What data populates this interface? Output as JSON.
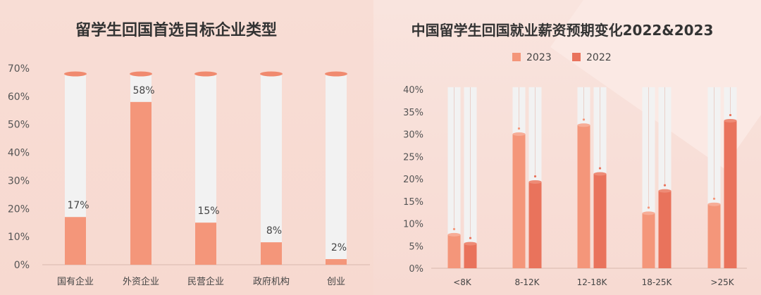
{
  "colors": {
    "bar_2023": "#f4967a",
    "bar_2022": "#e9735c",
    "bar_single": "#f4967a",
    "tube": "#f2f2f2",
    "cap": "#f08a6f",
    "axis_text": "#555555",
    "title": "#333333"
  },
  "chart_data": [
    {
      "type": "bar",
      "title": "留学生回国首选目标企业类型",
      "categories": [
        "国有企业",
        "外资企业",
        "民营企业",
        "政府机构",
        "创业"
      ],
      "values": [
        17,
        58,
        15,
        8,
        2
      ],
      "value_labels": [
        "17%",
        "58%",
        "15%",
        "8%",
        "2%"
      ],
      "ylim": [
        0,
        70
      ],
      "yticks": [
        "0%",
        "10%",
        "20%",
        "30%",
        "40%",
        "50%",
        "60%",
        "70%"
      ],
      "unit": "%"
    },
    {
      "type": "bar",
      "title": "中国留学生回国就业薪资预期变化2022&2023",
      "categories": [
        "<8K",
        "8-12K",
        "12-18K",
        "18-25K",
        ">25K"
      ],
      "series": [
        {
          "name": "2023",
          "values": [
            7.5,
            30,
            32,
            12.3,
            14.3
          ]
        },
        {
          "name": "2022",
          "values": [
            5.5,
            19.3,
            21.1,
            17.3,
            33
          ]
        }
      ],
      "ylim": [
        0,
        40
      ],
      "yticks": [
        "0%",
        "5%",
        "10%",
        "15%",
        "20%",
        "25%",
        "30%",
        "35%",
        "40%"
      ],
      "legend": "top-center"
    }
  ]
}
